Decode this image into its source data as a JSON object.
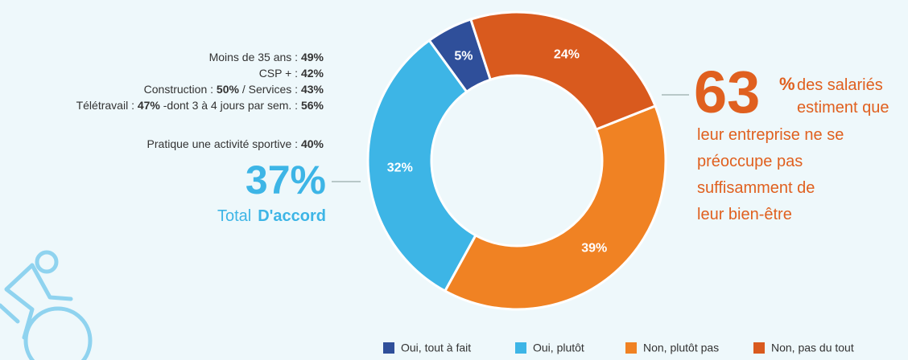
{
  "chart_data": {
    "type": "donut",
    "categories": [
      "Oui, tout à fait",
      "Oui, plutôt",
      "Non, plutôt pas",
      "Non, pas du tout"
    ],
    "values": [
      5,
      32,
      39,
      24
    ],
    "value_labels": [
      "5%",
      "32%",
      "39%",
      "24%"
    ],
    "colors": [
      "#2f4f9a",
      "#3db5e6",
      "#f08223",
      "#d95a1e"
    ],
    "left_notes": [
      [
        "Moins de 35 ans  : ",
        "49%"
      ],
      [
        "CSP + : ",
        "42%"
      ],
      [
        "Construction : ",
        "50%",
        " / Services : ",
        "43%"
      ],
      [
        "Télétravail : ",
        "47%",
        " -dont 3 à 4 jours par sem. : ",
        "56%"
      ],
      [
        "Pratique une activité sportive : ",
        "40%"
      ]
    ],
    "total": {
      "figure": "37%",
      "label": "Total",
      "strong": "D'accord"
    },
    "callout": {
      "figure": "63",
      "unit": "%",
      "lines": [
        "des salariés",
        "estiment que",
        "leur entreprise ne se",
        "préoccupe pas",
        "suffisamment de",
        "leur bien-être"
      ]
    }
  }
}
